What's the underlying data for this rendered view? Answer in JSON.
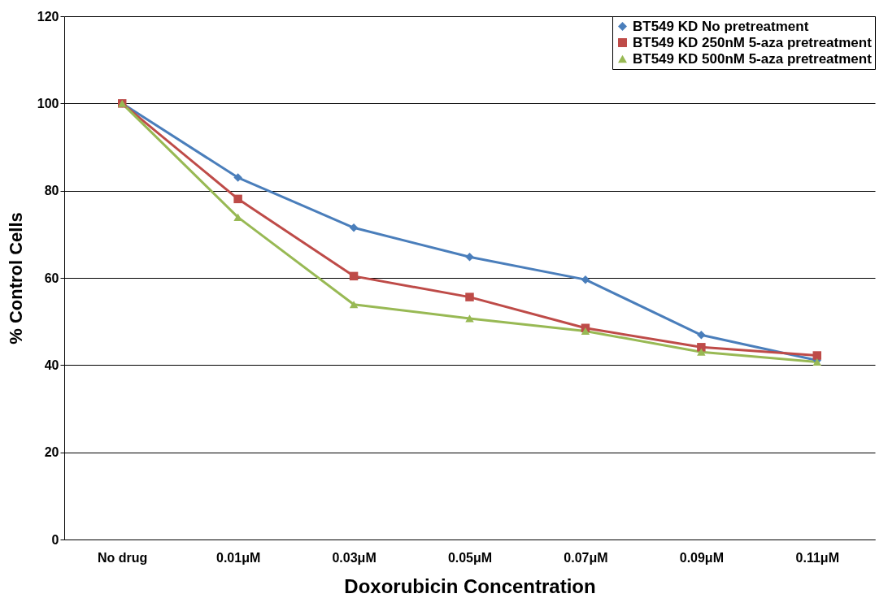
{
  "chart_data": {
    "type": "line",
    "xlabel": "Doxorubicin Concentration",
    "ylabel": "% Control Cells",
    "categories": [
      "No drug",
      "0.01μM",
      "0.03μM",
      "0.05μM",
      "0.07μM",
      "0.09μM",
      "0.11μM"
    ],
    "series": [
      {
        "name": "BT549 KD No pretreatment",
        "color": "#4a7ebb",
        "marker": "diamond",
        "values": [
          100,
          83.0,
          71.5,
          64.8,
          59.6,
          46.9,
          41.1
        ]
      },
      {
        "name": "BT549 KD 250nM 5-aza pretreatment",
        "color": "#be4b48",
        "marker": "square",
        "values": [
          100,
          78.1,
          60.4,
          55.6,
          48.5,
          44.1,
          42.2
        ]
      },
      {
        "name": "BT549 KD 500nM 5-aza pretreatment",
        "color": "#98b954",
        "marker": "triangle",
        "values": [
          100,
          73.9,
          53.9,
          50.7,
          47.8,
          43.0,
          40.7
        ]
      }
    ],
    "ylim": [
      0,
      120
    ],
    "yticks": [
      0,
      20,
      40,
      60,
      80,
      100,
      120
    ],
    "grid": "y",
    "legend": "top right",
    "line_style": "solid"
  }
}
